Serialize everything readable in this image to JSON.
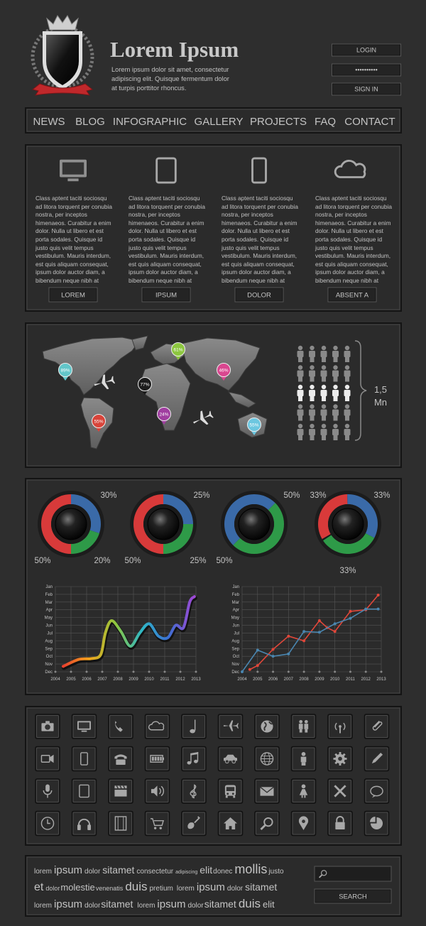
{
  "header": {
    "title": "Lorem Ipsum",
    "tagline": "Lorem ipsum dolor sit amet, consectetur adipiscing elit. Quisque fermentum dolor at turpis porttitor rhoncus.",
    "login": "LOGIN",
    "password": "••••••••••",
    "signin": "SIGN IN"
  },
  "nav": {
    "items": [
      "NEWS",
      "BLOG",
      "INFOGRAPHIC",
      "GALLERY",
      "PROJECTS",
      "FAQ",
      "CONTACT"
    ]
  },
  "features": [
    {
      "text": "Class aptent taciti sociosqu ad litora torquent per conubia nostra, per inceptos himenaeos. Curabitur a enim dolor. Nulla ut libero et est porta sodales. Quisque id justo quis velit tempus vestibulum. Mauris interdum, est quis aliquam consequat, ipsum dolor auctor diam, a bibendum neque nibh at",
      "button": "LOREM"
    },
    {
      "text": "Class aptent taciti sociosqu ad litora torquent per conubia nostra, per inceptos himenaeos. Curabitur a enim dolor. Nulla ut libero et est porta sodales. Quisque id justo quis velit tempus vestibulum. Mauris interdum, est quis aliquam consequat, ipsum dolor auctor diam, a bibendum neque nibh at",
      "button": "IPSUM"
    },
    {
      "text": "Class aptent taciti sociosqu ad litora torquent per conubia nostra, per inceptos himenaeos. Curabitur a enim dolor. Nulla ut libero et est porta sodales. Quisque id justo quis velit tempus vestibulum. Mauris interdum, est quis aliquam consequat, ipsum dolor auctor diam, a bibendum neque nibh at",
      "button": "DOLOR"
    },
    {
      "text": "Class aptent taciti sociosqu ad litora torquent per conubia nostra, per inceptos himenaeos. Curabitur a enim dolor. Nulla ut libero et est porta sodales. Quisque id justo quis velit tempus vestibulum. Mauris interdum, est quis aliquam consequat, ipsum dolor auctor diam, a bibendum neque nibh at",
      "button": "ABSENT A"
    }
  ],
  "map": {
    "pins": [
      {
        "label": "89%",
        "color": "#62c6c9"
      },
      {
        "label": "61%",
        "color": "#8cc63f"
      },
      {
        "label": "46%",
        "color": "#d9468f"
      },
      {
        "label": "77%",
        "color": "#1c1c1c"
      },
      {
        "label": "24%",
        "color": "#a03ea0"
      },
      {
        "label": "55%",
        "color": "#d8443a"
      },
      {
        "label": "55%",
        "color": "#6cc7e0"
      }
    ],
    "people_count": "1,5",
    "people_unit": "Mn"
  },
  "chart_data": [
    {
      "type": "donut",
      "values": [
        30,
        20,
        50
      ],
      "value_labels": [
        "30%",
        "20%",
        "50%"
      ],
      "colors": [
        "#3a6aa8",
        "#2e9a48",
        "#d83a3a"
      ]
    },
    {
      "type": "donut",
      "values": [
        25,
        25,
        50
      ],
      "value_labels": [
        "25%",
        "25%",
        "50%"
      ],
      "colors": [
        "#3a6aa8",
        "#2e9a48",
        "#d83a3a"
      ]
    },
    {
      "type": "donut",
      "values": [
        50,
        50
      ],
      "value_labels": [
        "50%",
        "50%"
      ],
      "colors": [
        "#3a6aa8",
        "#2e9a48"
      ]
    },
    {
      "type": "donut",
      "values": [
        33,
        33,
        33
      ],
      "value_labels": [
        "33%",
        "33%",
        "33%"
      ],
      "colors": [
        "#d83a3a",
        "#3a6aa8",
        "#2e9a48"
      ]
    },
    {
      "type": "line",
      "xlim": [
        2004,
        2013
      ],
      "xticks": [
        2004,
        2005,
        2006,
        2007,
        2008,
        2009,
        2010,
        2011,
        2012,
        2013
      ],
      "ylim": [
        12,
        1
      ],
      "yticks": [
        {
          "value": 1,
          "label": "Jan"
        },
        {
          "value": 2,
          "label": "Feb"
        },
        {
          "value": 3,
          "label": "Mar"
        },
        {
          "value": 4,
          "label": "Apr"
        },
        {
          "value": 5,
          "label": "May"
        },
        {
          "value": 6,
          "label": "Jun"
        },
        {
          "value": 7,
          "label": "Jul"
        },
        {
          "value": 8,
          "label": "Aug"
        },
        {
          "value": 9,
          "label": "Sep"
        },
        {
          "value": 10,
          "label": "Oct"
        },
        {
          "value": 11,
          "label": "Nov"
        },
        {
          "value": 12,
          "label": "Dec"
        }
      ],
      "grid": true,
      "smooth": true,
      "series": [
        {
          "colors": [
            "#e8402e",
            "#f3a51c",
            "#8dc63f",
            "#2fb7c6",
            "#3b6fd2",
            "#a048d4"
          ],
          "x": [
            2004.5,
            2005.5,
            2006.3,
            2006.9,
            2007.2,
            2007.6,
            2008.2,
            2008.8,
            2009.4,
            2010,
            2010.6,
            2011.2,
            2011.7,
            2012.2,
            2012.6,
            2012.9
          ],
          "values": [
            11.3,
            10.4,
            10.3,
            9.8,
            7.0,
            5.4,
            6.8,
            8.7,
            7.0,
            5.8,
            7.4,
            7.6,
            6.0,
            6.3,
            3.0,
            2.3
          ]
        }
      ]
    },
    {
      "type": "line",
      "xlim": [
        2004,
        2013
      ],
      "xticks": [
        2004,
        2005,
        2006,
        2007,
        2008,
        2009,
        2010,
        2011,
        2012,
        2013
      ],
      "ylim": [
        12,
        1
      ],
      "yticks": [
        {
          "value": 1,
          "label": "Jan"
        },
        {
          "value": 2,
          "label": "Feb"
        },
        {
          "value": 3,
          "label": "Mar"
        },
        {
          "value": 4,
          "label": "Apr"
        },
        {
          "value": 5,
          "label": "May"
        },
        {
          "value": 6,
          "label": "Jun"
        },
        {
          "value": 7,
          "label": "Jul"
        },
        {
          "value": 8,
          "label": "Aug"
        },
        {
          "value": 9,
          "label": "Sep"
        },
        {
          "value": 10,
          "label": "Oct"
        },
        {
          "value": 11,
          "label": "Nov"
        },
        {
          "value": 12,
          "label": "Dec"
        }
      ],
      "grid": true,
      "smooth": false,
      "markers": true,
      "series": [
        {
          "color": "#e0473a",
          "x": [
            2004.5,
            2005,
            2006,
            2007,
            2008,
            2009,
            2009.5,
            2010,
            2011,
            2012,
            2012.8
          ],
          "values": [
            11.7,
            11.2,
            9.1,
            7.4,
            8.0,
            5.4,
            6.3,
            6.8,
            4.2,
            4.0,
            2.1
          ]
        },
        {
          "color": "#4a86b0",
          "x": [
            2004,
            2005,
            2006,
            2007,
            2008,
            2009,
            2010,
            2011,
            2012,
            2012.8
          ],
          "values": [
            12,
            9.2,
            10.0,
            9.7,
            6.8,
            6.9,
            5.8,
            5.1,
            3.9,
            3.9
          ]
        }
      ]
    }
  ],
  "tags": {
    "lines": [
      [
        "lorem",
        "ipsum",
        "dolor",
        "sitamet",
        "consectetur",
        "adipiscing",
        "elit",
        "donec",
        "mollis",
        "justo"
      ],
      [
        "et",
        "dolor",
        "molestie",
        "venenatis",
        "duis",
        "pretium",
        "lorem",
        "ipsum",
        "dolor",
        "sitamet"
      ],
      [
        "lorem",
        "ipsum",
        "dolor",
        "sitamet",
        "lorem",
        "ipsum",
        "dolor",
        "sitamet",
        "duis",
        "elit"
      ]
    ]
  },
  "search": {
    "button": "SEARCH"
  }
}
